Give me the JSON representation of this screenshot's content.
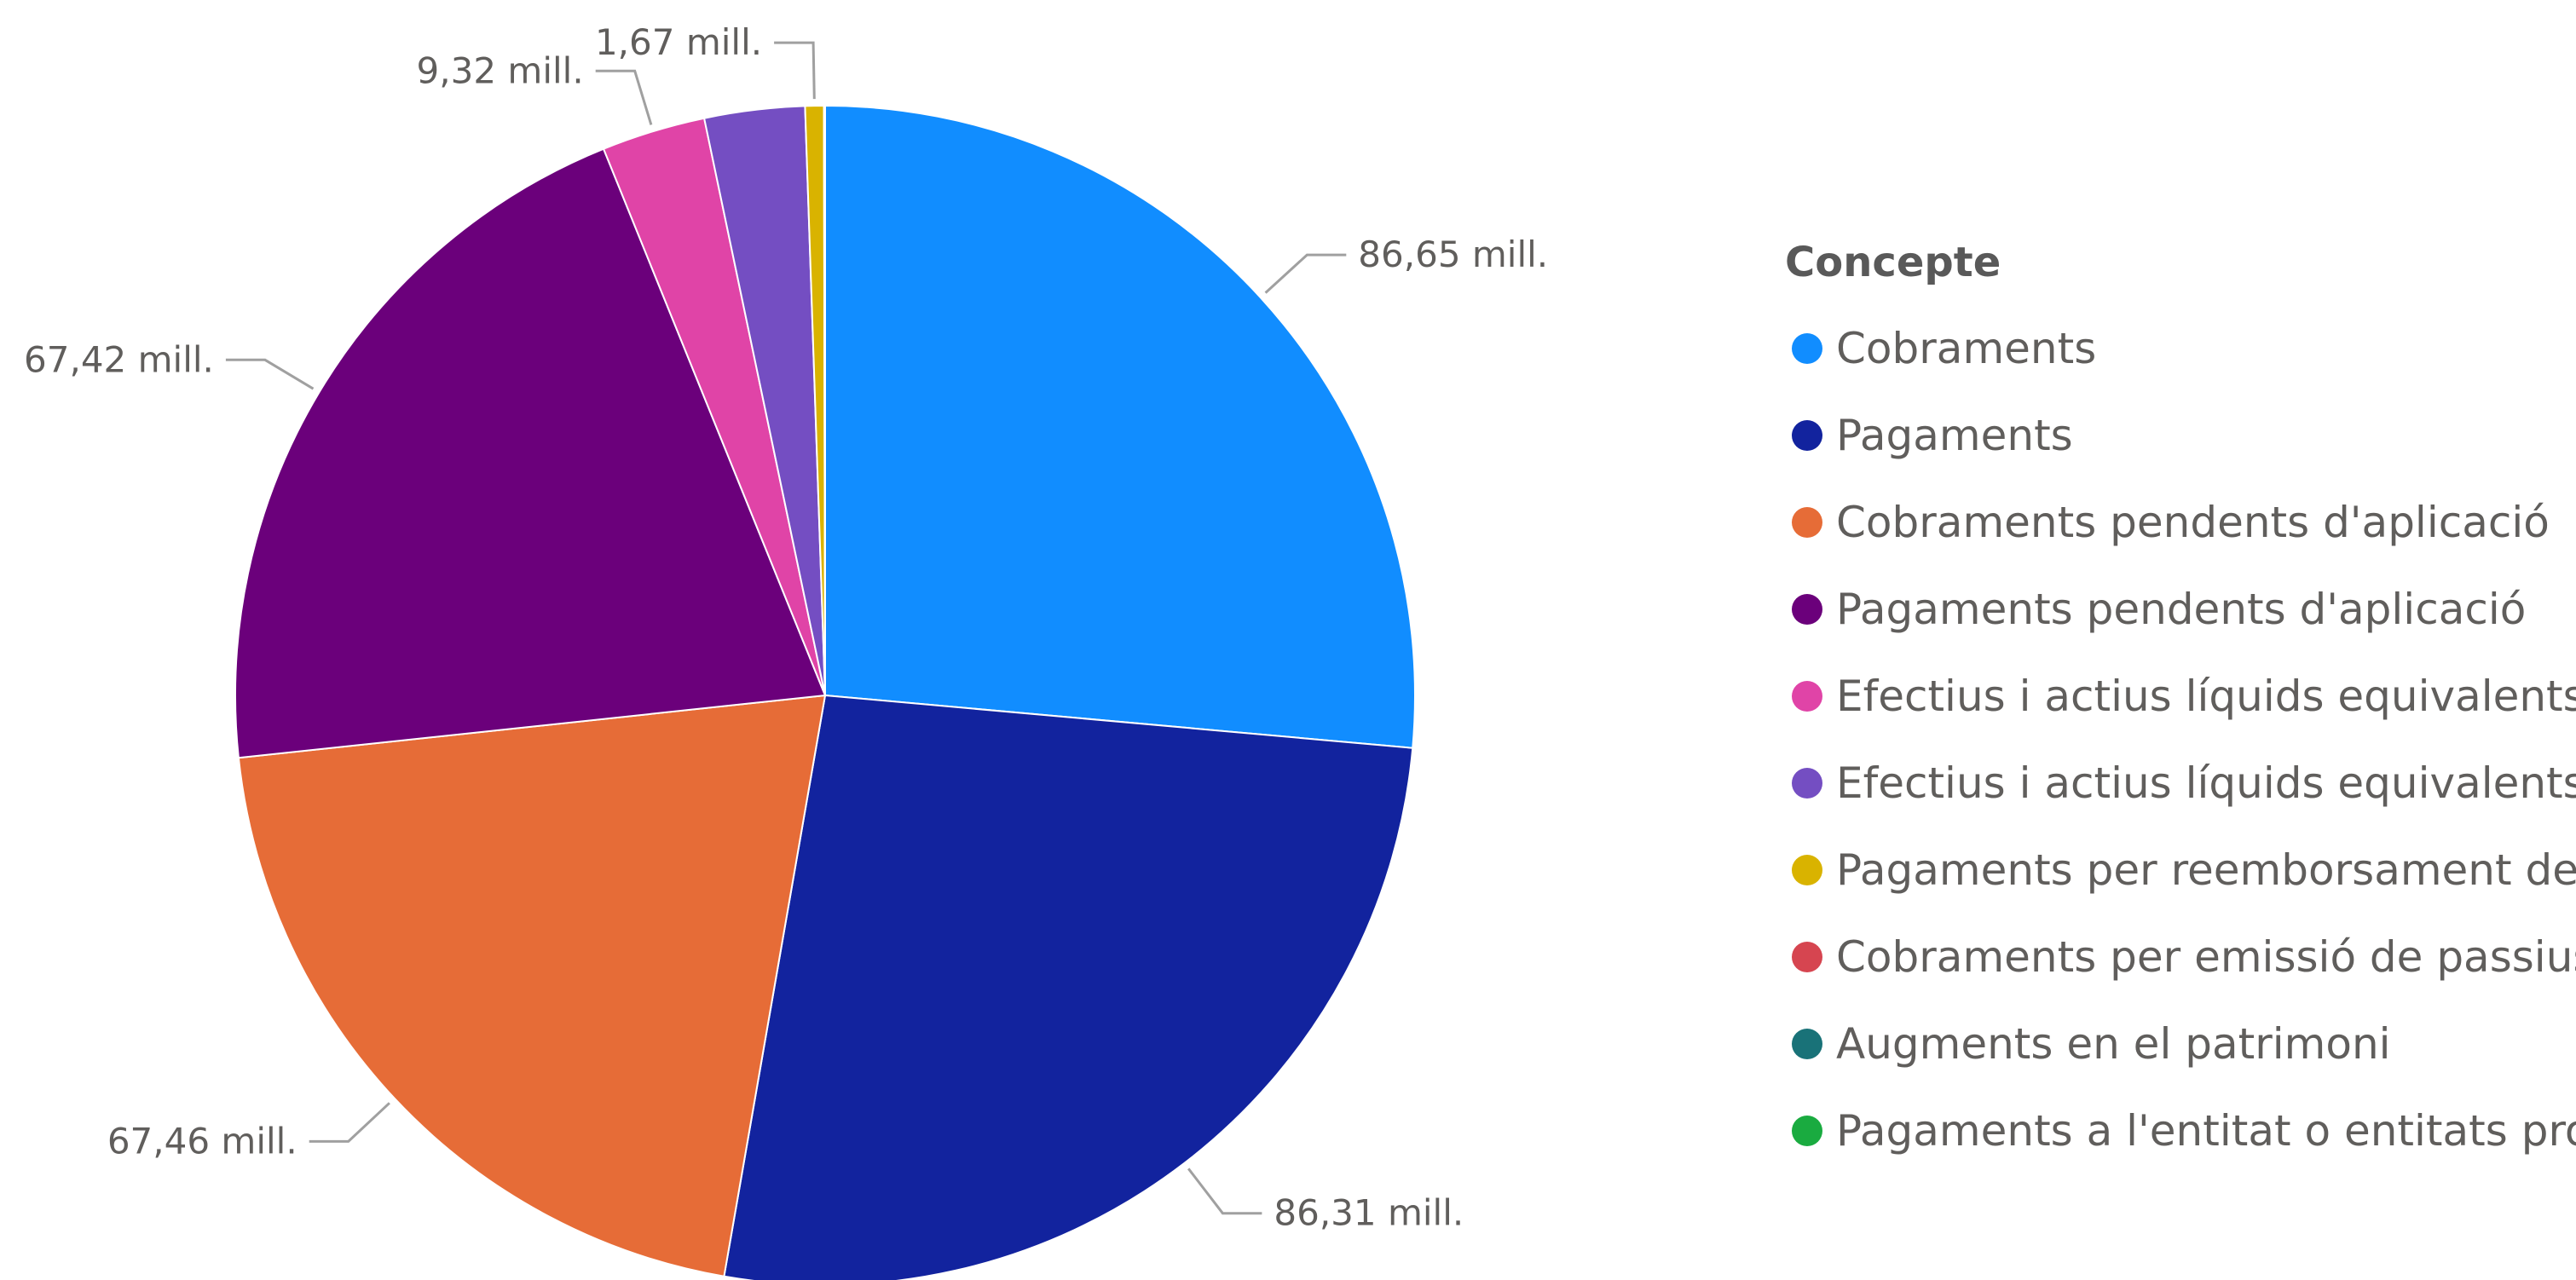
{
  "chart_data": {
    "type": "pie",
    "legend_title": "Concepte",
    "legend_position": "right",
    "slices": [
      {
        "name": "Cobraments",
        "value": 86.65,
        "label": "86,65 mill.",
        "color": "#118DFF"
      },
      {
        "name": "Pagaments",
        "value": 86.31,
        "label": "86,31 mill.",
        "color": "#12239E"
      },
      {
        "name": "Cobraments pendents d'aplicació",
        "value": 67.46,
        "label": "67,46 mill.",
        "color": "#E66C37"
      },
      {
        "name": "Pagaments pendents d'aplicació",
        "value": 67.42,
        "label": "67,42 mill.",
        "color": "#6B007B"
      },
      {
        "name": "Efectius i actius líquids equivalents ...",
        "value": 9.32,
        "label": "9,32 mill.",
        "color": "#E044A7"
      },
      {
        "name": "Efectius i actius líquids equivalents ...",
        "value": 9.0,
        "label": "",
        "color": "#744EC2"
      },
      {
        "name": "Pagaments per reemborsament de ...",
        "value": 1.67,
        "label": "1,67 mill.",
        "color": "#D9B300"
      },
      {
        "name": "Cobraments per emissió de passius...",
        "value": 0.08,
        "label": "",
        "color": "#D64550"
      },
      {
        "name": "Augments en el patrimoni",
        "value": 0.02,
        "label": "",
        "color": "#197278"
      },
      {
        "name": "Pagaments a l'entitat o entitats pro...",
        "value": 0.01,
        "label": "",
        "color": "#1AAB40"
      }
    ]
  }
}
